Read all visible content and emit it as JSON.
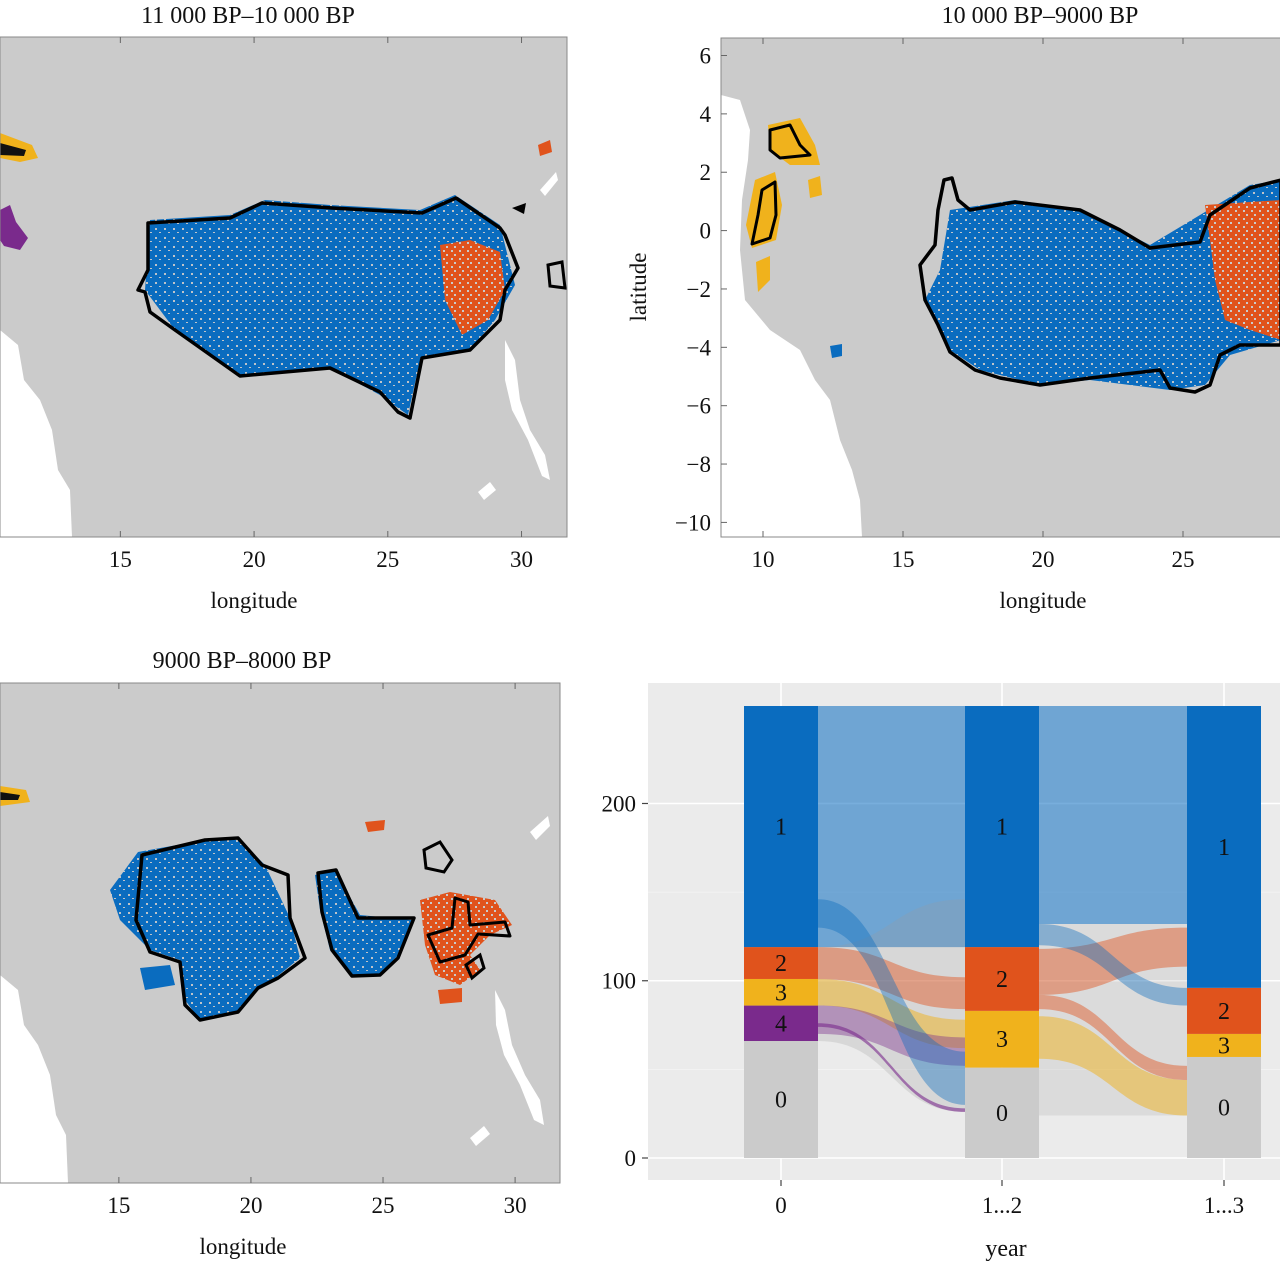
{
  "chart_data": [
    {
      "type": "map",
      "title": "11 000 BP–10 000 BP",
      "xlabel": "longitude",
      "ylabel": "",
      "xticks": [
        15,
        20,
        25,
        30
      ],
      "xlim": [
        10.5,
        31.7
      ],
      "ylim": [
        -10.5,
        6.5
      ],
      "region_colors": {
        "1": "#0a6cbf",
        "2": "#e0531c",
        "3": "#f0b21c",
        "4": "#7a2a8c",
        "land": "#cbcbcb",
        "water": "#ffffff"
      }
    },
    {
      "type": "map",
      "title": "10 000 BP–9000 BP",
      "xlabel": "longitude",
      "ylabel": "latitude",
      "xticks": [
        10,
        15,
        20,
        25
      ],
      "yticks": [
        6,
        4,
        2,
        0,
        -2,
        -4,
        -6,
        -8,
        -10
      ],
      "xlim": [
        8.5,
        28.5
      ],
      "ylim": [
        -10.5,
        6.6
      ]
    },
    {
      "type": "map",
      "title": "9000 BP–8000 BP",
      "xlabel": "longitude",
      "ylabel": "",
      "xticks": [
        15,
        20,
        25,
        30
      ],
      "xlim": [
        10.5,
        31.7
      ],
      "ylim": [
        -10.5,
        6.5
      ]
    },
    {
      "type": "alluvial",
      "title": "",
      "xlabel": "year",
      "ylabel": "",
      "categories": [
        "0",
        "1...2",
        "1...3"
      ],
      "yticks": [
        0,
        100,
        200
      ],
      "ylim": [
        0,
        255
      ],
      "stacks": [
        {
          "x": "0",
          "segments": [
            {
              "label": "0",
              "from": 0,
              "to": 66,
              "color": "#cbcbcb"
            },
            {
              "label": "4",
              "from": 66,
              "to": 86,
              "color": "#7a2a8c"
            },
            {
              "label": "3",
              "from": 86,
              "to": 101,
              "color": "#f0b21c"
            },
            {
              "label": "2",
              "from": 101,
              "to": 119,
              "color": "#e0531c"
            },
            {
              "label": "1",
              "from": 119,
              "to": 255,
              "color": "#0a6cbf"
            }
          ]
        },
        {
          "x": "1...2",
          "segments": [
            {
              "label": "0",
              "from": 0,
              "to": 51,
              "color": "#cbcbcb"
            },
            {
              "label": "3",
              "from": 51,
              "to": 83,
              "color": "#f0b21c"
            },
            {
              "label": "2",
              "from": 83,
              "to": 119,
              "color": "#e0531c"
            },
            {
              "label": "1",
              "from": 119,
              "to": 255,
              "color": "#0a6cbf"
            }
          ]
        },
        {
          "x": "1...3",
          "segments": [
            {
              "label": "0",
              "from": 0,
              "to": 57,
              "color": "#cbcbcb"
            },
            {
              "label": "3",
              "from": 57,
              "to": 70,
              "color": "#f0b21c"
            },
            {
              "label": "2",
              "from": 70,
              "to": 96,
              "color": "#e0531c"
            },
            {
              "label": "1",
              "from": 96,
              "to": 255,
              "color": "#0a6cbf"
            }
          ]
        }
      ],
      "flows": [
        {
          "from_stack": 0,
          "to_stack": 1,
          "y0": [
            119,
            255
          ],
          "y1": [
            119,
            255
          ],
          "color": "#0a6cbf",
          "opacity": 0.55
        },
        {
          "from_stack": 0,
          "to_stack": 1,
          "y0": [
            66,
            119
          ],
          "y1": [
            26,
            146
          ],
          "color": "#9a9a9a",
          "opacity": 0.25
        },
        {
          "from_stack": 0,
          "to_stack": 1,
          "y0": [
            101,
            119
          ],
          "y1": [
            84,
            102
          ],
          "color": "#e0531c",
          "opacity": 0.45
        },
        {
          "from_stack": 0,
          "to_stack": 1,
          "y0": [
            86,
            101
          ],
          "y1": [
            62,
            78
          ],
          "color": "#f0b21c",
          "opacity": 0.5
        },
        {
          "from_stack": 0,
          "to_stack": 1,
          "y0": [
            70,
            86
          ],
          "y1": [
            52,
            68
          ],
          "color": "#7a2a8c",
          "opacity": 0.4
        },
        {
          "from_stack": 0,
          "to_stack": 1,
          "y0": [
            74,
            76
          ],
          "y1": [
            26,
            28
          ],
          "color": "#7a2a8c",
          "opacity": 0.6
        },
        {
          "from_stack": 0,
          "to_stack": 1,
          "y0": [
            130,
            146
          ],
          "y1": [
            30,
            60
          ],
          "color": "#0a6cbf",
          "opacity": 0.4
        },
        {
          "from_stack": 1,
          "to_stack": 2,
          "y0": [
            132,
            255
          ],
          "y1": [
            132,
            255
          ],
          "color": "#0a6cbf",
          "opacity": 0.55
        },
        {
          "from_stack": 1,
          "to_stack": 2,
          "y0": [
            24,
            132
          ],
          "y1": [
            24,
            132
          ],
          "color": "#9a9a9a",
          "opacity": 0.2
        },
        {
          "from_stack": 1,
          "to_stack": 2,
          "y0": [
            92,
            118
          ],
          "y1": [
            108,
            130
          ],
          "color": "#e0531c",
          "opacity": 0.45
        },
        {
          "from_stack": 1,
          "to_stack": 2,
          "y0": [
            56,
            80
          ],
          "y1": [
            24,
            44
          ],
          "color": "#f0b21c",
          "opacity": 0.5
        },
        {
          "from_stack": 1,
          "to_stack": 2,
          "y0": [
            120,
            132
          ],
          "y1": [
            86,
            96
          ],
          "color": "#0a6cbf",
          "opacity": 0.4
        },
        {
          "from_stack": 1,
          "to_stack": 2,
          "y0": [
            84,
            92
          ],
          "y1": [
            44,
            52
          ],
          "color": "#e0531c",
          "opacity": 0.45
        }
      ]
    }
  ]
}
